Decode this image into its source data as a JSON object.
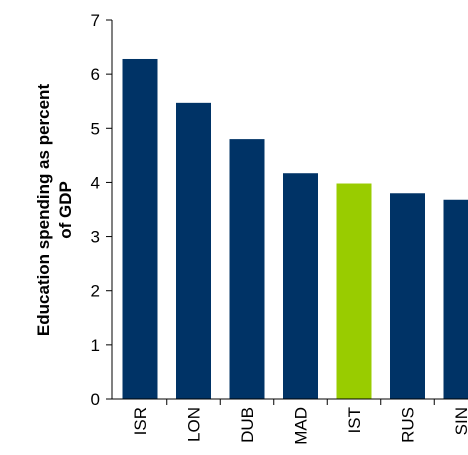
{
  "chart_data": {
    "type": "bar",
    "title": "",
    "xlabel": "",
    "ylabel_lines": [
      "Education spending as percent",
      "of GDP"
    ],
    "ylim": [
      0,
      7
    ],
    "yticks": [
      "0",
      "1",
      "2",
      "3",
      "4",
      "5",
      "6",
      "7"
    ],
    "categories": [
      "ISR",
      "LON",
      "DUB",
      "MAD",
      "IST",
      "RUS",
      "SIN"
    ],
    "values": [
      6.28,
      5.47,
      4.8,
      4.17,
      3.98,
      3.8,
      3.68
    ],
    "colors": {
      "default": "#003366",
      "highlight": "#99CC00",
      "axis": "#000000"
    },
    "highlight_category": "IST",
    "grid": false
  }
}
